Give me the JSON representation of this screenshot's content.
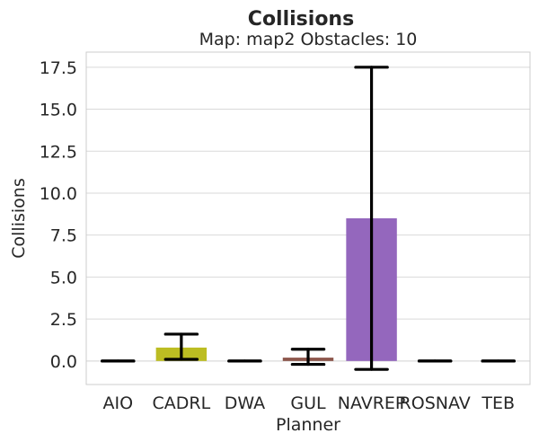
{
  "chart_data": {
    "type": "bar",
    "title": "Collisions",
    "subtitle": "Map: map2 Obstacles: 10",
    "xlabel": "Planner",
    "ylabel": "Collisions",
    "categories": [
      "AIO",
      "CADRL",
      "DWA",
      "GUL",
      "NAVREP",
      "ROSNAV",
      "TEB"
    ],
    "values": [
      0.0,
      0.8,
      0.0,
      0.2,
      8.5,
      0.0,
      0.0
    ],
    "error_low": [
      0.0,
      0.1,
      0.0,
      -0.2,
      -0.5,
      0.0,
      0.0
    ],
    "error_high": [
      0.0,
      1.6,
      0.0,
      0.7,
      17.5,
      0.0,
      0.0
    ],
    "colors": [
      "#1f77b4",
      "#bcbd22",
      "#2ca02c",
      "#8c564b",
      "#9467bd",
      "#e377c2",
      "#7f7f7f"
    ],
    "ylim": [
      -1.4,
      18.4
    ],
    "yticks": [
      0.0,
      2.5,
      5.0,
      7.5,
      10.0,
      12.5,
      15.0,
      17.5
    ],
    "ytick_labels": [
      "0.0",
      "2.5",
      "5.0",
      "7.5",
      "10.0",
      "12.5",
      "15.0",
      "17.5"
    ],
    "grid": "y",
    "legend": "none"
  }
}
